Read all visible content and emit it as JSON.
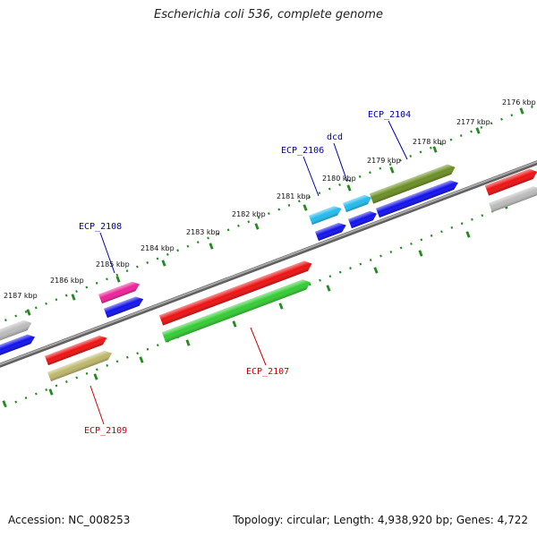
{
  "title": "Escherichia coli 536, complete genome",
  "footer": {
    "accession": "Accession: NC_008253",
    "summary": "Topology: circular; Length: 4,938,920 bp; Genes: 4,722"
  },
  "ticks": [
    {
      "label": "2176 kbp"
    },
    {
      "label": "2177 kbp"
    },
    {
      "label": "2178 kbp"
    },
    {
      "label": "2179 kbp"
    },
    {
      "label": "2180 kbp"
    },
    {
      "label": "2181 kbp"
    },
    {
      "label": "2182 kbp"
    },
    {
      "label": "2183 kbp"
    },
    {
      "label": "2184 kbp"
    },
    {
      "label": "2185 kbp"
    },
    {
      "label": "2186 kbp"
    },
    {
      "label": "2187 kbp"
    }
  ],
  "gene_labels": [
    {
      "name": "ECP_2104",
      "color": "#0000aa"
    },
    {
      "name": "dcd",
      "color": "#0000aa"
    },
    {
      "name": "ECP_2106",
      "color": "#0000aa"
    },
    {
      "name": "ECP_2108",
      "color": "#0000aa"
    },
    {
      "name": "ECP_2107",
      "color": "#cc0000"
    },
    {
      "name": "ECP_2109",
      "color": "#cc0000"
    }
  ],
  "colors": {
    "backbone": "#888888",
    "red": "#ee1111",
    "blue": "#1111ee",
    "cyan": "#22bbee",
    "olive": "#6b8e23",
    "green": "#33cc33",
    "magenta": "#ee2299",
    "khaki": "#bdb76b",
    "gray": "#bbbbbb",
    "tick": "#228b22"
  }
}
